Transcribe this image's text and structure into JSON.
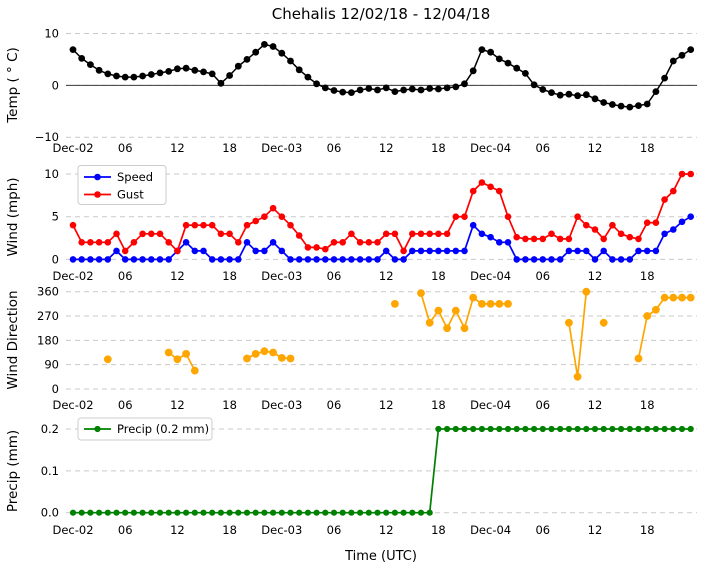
{
  "title": "Chehalis 12/02/18 - 12/04/18",
  "xlabel": "Time (UTC)",
  "colors": {
    "temp": "#000000",
    "speed": "#0000ff",
    "gust": "#ff0000",
    "direction": "#ffa500",
    "precip": "#008000",
    "grid": "#c9c9c9",
    "zero_line": "#3a3a3a",
    "legend_border": "#cccccc",
    "legend_bg": "#ffffff"
  },
  "x_axis": {
    "tick_labels": [
      "Dec-02",
      "06",
      "12",
      "18",
      "Dec-03",
      "06",
      "12",
      "18",
      "Dec-04",
      "06",
      "12",
      "18"
    ],
    "tick_hours": [
      0,
      6,
      12,
      18,
      24,
      30,
      36,
      42,
      48,
      54,
      60,
      66
    ],
    "hours_total": 72
  },
  "chart_data": [
    {
      "type": "line",
      "panel": "temperature",
      "ylabel": "Temp ( ° C)",
      "yticks": [
        10,
        0,
        -10
      ],
      "ytick_labels": [
        "10",
        "0",
        "−10"
      ],
      "ylim": [
        -10,
        10
      ],
      "zero_line": true,
      "grid": true,
      "series": [
        {
          "name": "Temp",
          "color": "#000000",
          "values": [
            6.9,
            5.2,
            4.0,
            2.9,
            2.2,
            1.8,
            1.6,
            1.6,
            1.8,
            2.1,
            2.4,
            2.7,
            3.2,
            3.3,
            2.9,
            2.6,
            2.2,
            0.4,
            1.9,
            3.7,
            5.0,
            6.4,
            7.9,
            7.5,
            6.2,
            4.7,
            3.0,
            1.6,
            0.3,
            -0.5,
            -1.0,
            -1.3,
            -1.4,
            -0.9,
            -0.6,
            -0.9,
            -0.5,
            -1.2,
            -0.9,
            -0.7,
            -0.9,
            -0.6,
            -0.7,
            -0.5,
            -0.3,
            0.3,
            2.8,
            6.9,
            6.4,
            5.1,
            4.3,
            3.3,
            2.3,
            0.1,
            -0.8,
            -1.4,
            -1.9,
            -1.7,
            -2.0,
            -1.8,
            -2.6,
            -3.3,
            -3.7,
            -4.0,
            -4.2,
            -3.9,
            -3.6,
            -1.2,
            1.4,
            4.7,
            5.8,
            6.9
          ]
        }
      ]
    },
    {
      "type": "line",
      "panel": "wind",
      "ylabel": "Wind (mph)",
      "yticks": [
        10,
        5,
        0
      ],
      "ytick_labels": [
        "10",
        "5",
        "0"
      ],
      "ylim": [
        0,
        10
      ],
      "zero_line": false,
      "grid": true,
      "legend": {
        "labels": [
          "Speed",
          "Gust"
        ],
        "position": "upper-left"
      },
      "series": [
        {
          "name": "Speed",
          "color": "#0000ff",
          "values": [
            0,
            0,
            0,
            0,
            0,
            1,
            0,
            0,
            0,
            0,
            0,
            0,
            1,
            2,
            1,
            1,
            0,
            0,
            0,
            0,
            2,
            1,
            1,
            2,
            1,
            0,
            0,
            0,
            0,
            0,
            0,
            0,
            0,
            0,
            0,
            0,
            1,
            0,
            0,
            1,
            1,
            1,
            1,
            1,
            1,
            1,
            4,
            3,
            2.6,
            2,
            2,
            0,
            0,
            0,
            0,
            0,
            0,
            1,
            1,
            1,
            0,
            1,
            0,
            0,
            0,
            1,
            1,
            1,
            3,
            3.5,
            4.4,
            5
          ]
        },
        {
          "name": "Gust",
          "color": "#ff0000",
          "values": [
            4,
            2,
            2,
            2,
            2,
            3,
            1,
            2,
            3,
            3,
            3,
            2,
            1,
            4,
            4,
            4,
            4,
            3,
            3,
            2,
            4,
            4.5,
            5,
            6,
            5,
            4,
            2.8,
            1.4,
            1.4,
            1.2,
            2,
            2,
            3,
            2,
            2,
            2,
            3,
            3,
            1,
            3,
            3,
            3,
            3,
            3,
            5,
            5,
            8,
            9,
            8.5,
            8,
            5,
            2.6,
            2.4,
            2.4,
            2.4,
            3,
            2.4,
            2.4,
            5,
            4,
            3.5,
            2.4,
            4,
            3,
            2.6,
            2.4,
            4.3,
            4.3,
            7,
            8,
            10,
            10
          ]
        }
      ]
    },
    {
      "type": "scatter-line",
      "panel": "wind_direction",
      "ylabel": "Wind Direction",
      "yticks": [
        360,
        270,
        180,
        90,
        0
      ],
      "ytick_labels": [
        "360",
        "270",
        "180",
        "90",
        "0"
      ],
      "ylim": [
        0,
        360
      ],
      "zero_line": false,
      "grid": true,
      "series": [
        {
          "name": "Direction",
          "color": "#ffa500",
          "points": [
            [
              4,
              110
            ],
            [
              11,
              135
            ],
            [
              12,
              110
            ],
            [
              13,
              130
            ],
            [
              14,
              68
            ],
            [
              20,
              113
            ],
            [
              21,
              130
            ],
            [
              22,
              140
            ],
            [
              23,
              135
            ],
            [
              24,
              115
            ],
            [
              25,
              113
            ],
            [
              37,
              315
            ],
            [
              40,
              355
            ],
            [
              41,
              245
            ],
            [
              42,
              290
            ],
            [
              43,
              225
            ],
            [
              44,
              290
            ],
            [
              45,
              225
            ],
            [
              46,
              338
            ],
            [
              47,
              315
            ],
            [
              48,
              315
            ],
            [
              49,
              315
            ],
            [
              50,
              315
            ],
            [
              57,
              245
            ],
            [
              58,
              45
            ],
            [
              59,
              360
            ],
            [
              61,
              245
            ],
            [
              65,
              113
            ],
            [
              66,
              270
            ],
            [
              67,
              293
            ],
            [
              68,
              338
            ],
            [
              69,
              338
            ],
            [
              70,
              338
            ],
            [
              71,
              338
            ]
          ]
        }
      ]
    },
    {
      "type": "line",
      "panel": "precip",
      "ylabel": "Precip (mm)",
      "yticks": [
        0.2,
        0.1,
        0.0
      ],
      "ytick_labels": [
        "0.2",
        "0.1",
        "0.0"
      ],
      "ylim": [
        0,
        0.2
      ],
      "zero_line": false,
      "grid": true,
      "legend": {
        "labels": [
          "Precip (0.2 mm)"
        ],
        "position": "upper-left"
      },
      "series": [
        {
          "name": "Precip (0.2 mm)",
          "color": "#008000",
          "values": [
            0,
            0,
            0,
            0,
            0,
            0,
            0,
            0,
            0,
            0,
            0,
            0,
            0,
            0,
            0,
            0,
            0,
            0,
            0,
            0,
            0,
            0,
            0,
            0,
            0,
            0,
            0,
            0,
            0,
            0,
            0,
            0,
            0,
            0,
            0,
            0,
            0,
            0,
            0,
            0,
            0,
            0,
            0.2,
            0.2,
            0.2,
            0.2,
            0.2,
            0.2,
            0.2,
            0.2,
            0.2,
            0.2,
            0.2,
            0.2,
            0.2,
            0.2,
            0.2,
            0.2,
            0.2,
            0.2,
            0.2,
            0.2,
            0.2,
            0.2,
            0.2,
            0.2,
            0.2,
            0.2,
            0.2,
            0.2,
            0.2,
            0.2
          ]
        }
      ]
    }
  ]
}
